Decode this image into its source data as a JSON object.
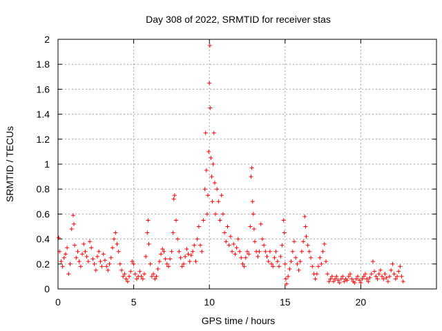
{
  "chart_data": {
    "type": "scatter",
    "title": "Day 308 of 2022, SRMTID for receiver stas",
    "xlabel": "GPS time / hours",
    "ylabel": "SRMTID / TECUs",
    "xlim": [
      0,
      25
    ],
    "ylim": [
      0,
      2
    ],
    "xticks": [
      0,
      5,
      10,
      15,
      20
    ],
    "yticks": [
      0,
      0.2,
      0.4,
      0.6,
      0.8,
      1,
      1.2,
      1.4,
      1.6,
      1.8,
      2
    ],
    "grid": true,
    "marker": "plus",
    "series": [
      {
        "name": "SRMTID",
        "color": "#ff0000",
        "points": [
          [
            0.05,
            0.41
          ],
          [
            0.1,
            0.3
          ],
          [
            0.2,
            0.22
          ],
          [
            0.3,
            0.18
          ],
          [
            0.4,
            0.25
          ],
          [
            0.5,
            0.28
          ],
          [
            0.6,
            0.33
          ],
          [
            0.7,
            0.12
          ],
          [
            0.8,
            0.2
          ],
          [
            0.9,
            0.48
          ],
          [
            1.0,
            0.59
          ],
          [
            1.05,
            0.52
          ],
          [
            1.1,
            0.35
          ],
          [
            1.2,
            0.25
          ],
          [
            1.3,
            0.3
          ],
          [
            1.4,
            0.22
          ],
          [
            1.5,
            0.18
          ],
          [
            1.6,
            0.28
          ],
          [
            1.7,
            0.36
          ],
          [
            1.8,
            0.3
          ],
          [
            1.9,
            0.26
          ],
          [
            2.0,
            0.22
          ],
          [
            2.1,
            0.38
          ],
          [
            2.2,
            0.33
          ],
          [
            2.3,
            0.24
          ],
          [
            2.4,
            0.2
          ],
          [
            2.5,
            0.15
          ],
          [
            2.6,
            0.26
          ],
          [
            2.7,
            0.3
          ],
          [
            2.8,
            0.22
          ],
          [
            2.9,
            0.18
          ],
          [
            3.0,
            0.28
          ],
          [
            3.1,
            0.23
          ],
          [
            3.2,
            0.18
          ],
          [
            3.3,
            0.15
          ],
          [
            3.4,
            0.2
          ],
          [
            3.5,
            0.25
          ],
          [
            3.6,
            0.33
          ],
          [
            3.7,
            0.4
          ],
          [
            3.8,
            0.45
          ],
          [
            3.9,
            0.36
          ],
          [
            4.0,
            0.3
          ],
          [
            4.1,
            0.2
          ],
          [
            4.2,
            0.15
          ],
          [
            4.3,
            0.1
          ],
          [
            4.4,
            0.12
          ],
          [
            4.5,
            0.08
          ],
          [
            4.6,
            0.06
          ],
          [
            4.7,
            0.1
          ],
          [
            4.8,
            0.14
          ],
          [
            4.9,
            0.22
          ],
          [
            5.0,
            0.2
          ],
          [
            5.1,
            0.12
          ],
          [
            5.2,
            0.08
          ],
          [
            5.3,
            0.1
          ],
          [
            5.4,
            0.14
          ],
          [
            5.5,
            0.1
          ],
          [
            5.6,
            0.08
          ],
          [
            5.7,
            0.12
          ],
          [
            5.8,
            0.26
          ],
          [
            5.9,
            0.45
          ],
          [
            5.95,
            0.55
          ],
          [
            6.0,
            0.36
          ],
          [
            6.1,
            0.2
          ],
          [
            6.2,
            0.1
          ],
          [
            6.3,
            0.12
          ],
          [
            6.4,
            0.08
          ],
          [
            6.5,
            0.1
          ],
          [
            6.6,
            0.16
          ],
          [
            6.7,
            0.22
          ],
          [
            6.8,
            0.28
          ],
          [
            6.9,
            0.32
          ],
          [
            7.0,
            0.3
          ],
          [
            7.1,
            0.24
          ],
          [
            7.2,
            0.2
          ],
          [
            7.3,
            0.18
          ],
          [
            7.4,
            0.24
          ],
          [
            7.5,
            0.3
          ],
          [
            7.6,
            0.45
          ],
          [
            7.65,
            0.72
          ],
          [
            7.7,
            0.75
          ],
          [
            7.8,
            0.55
          ],
          [
            7.9,
            0.4
          ],
          [
            8.0,
            0.3
          ],
          [
            8.1,
            0.25
          ],
          [
            8.2,
            0.18
          ],
          [
            8.3,
            0.2
          ],
          [
            8.4,
            0.26
          ],
          [
            8.5,
            0.32
          ],
          [
            8.6,
            0.28
          ],
          [
            8.7,
            0.22
          ],
          [
            8.8,
            0.27
          ],
          [
            8.9,
            0.3
          ],
          [
            9.0,
            0.35
          ],
          [
            9.1,
            0.22
          ],
          [
            9.2,
            0.4
          ],
          [
            9.3,
            0.5
          ],
          [
            9.4,
            0.35
          ],
          [
            9.5,
            0.3
          ],
          [
            9.6,
            0.55
          ],
          [
            9.7,
            0.8
          ],
          [
            9.75,
            1.25
          ],
          [
            9.8,
            0.95
          ],
          [
            9.85,
            0.6
          ],
          [
            9.9,
            0.75
          ],
          [
            9.95,
            1.1
          ],
          [
            10.0,
            1.65
          ],
          [
            10.03,
            1.95
          ],
          [
            10.05,
            1.45
          ],
          [
            10.1,
            1.05
          ],
          [
            10.15,
            0.9
          ],
          [
            10.2,
            0.7
          ],
          [
            10.25,
            1.0
          ],
          [
            10.3,
            1.25
          ],
          [
            10.35,
            0.85
          ],
          [
            10.4,
            0.6
          ],
          [
            10.5,
            0.8
          ],
          [
            10.6,
            0.7
          ],
          [
            10.7,
            0.55
          ],
          [
            10.8,
            0.75
          ],
          [
            10.9,
            0.6
          ],
          [
            11.0,
            0.45
          ],
          [
            11.1,
            0.38
          ],
          [
            11.2,
            0.5
          ],
          [
            11.3,
            0.35
          ],
          [
            11.4,
            0.42
          ],
          [
            11.5,
            0.3
          ],
          [
            11.6,
            0.36
          ],
          [
            11.7,
            0.28
          ],
          [
            11.8,
            0.33
          ],
          [
            11.9,
            0.4
          ],
          [
            12.0,
            0.3
          ],
          [
            12.1,
            0.25
          ],
          [
            12.2,
            0.2
          ],
          [
            12.3,
            0.18
          ],
          [
            12.4,
            0.25
          ],
          [
            12.5,
            0.3
          ],
          [
            12.6,
            0.28
          ],
          [
            12.7,
            0.5
          ],
          [
            12.75,
            0.9
          ],
          [
            12.8,
            0.97
          ],
          [
            12.85,
            0.7
          ],
          [
            12.9,
            0.6
          ],
          [
            12.95,
            0.48
          ],
          [
            13.0,
            0.38
          ],
          [
            13.1,
            0.3
          ],
          [
            13.2,
            0.26
          ],
          [
            13.3,
            0.3
          ],
          [
            13.4,
            0.52
          ],
          [
            13.5,
            0.4
          ],
          [
            13.6,
            0.35
          ],
          [
            13.7,
            0.3
          ],
          [
            13.8,
            0.26
          ],
          [
            13.9,
            0.22
          ],
          [
            14.0,
            0.3
          ],
          [
            14.1,
            0.2
          ],
          [
            14.2,
            0.18
          ],
          [
            14.3,
            0.25
          ],
          [
            14.4,
            0.3
          ],
          [
            14.5,
            0.22
          ],
          [
            14.6,
            0.18
          ],
          [
            14.7,
            0.26
          ],
          [
            14.8,
            0.35
          ],
          [
            14.9,
            0.55
          ],
          [
            14.95,
            0.45
          ],
          [
            15.0,
            0.2
          ],
          [
            15.05,
            0.08
          ],
          [
            15.1,
            0.04
          ],
          [
            15.2,
            0.1
          ],
          [
            15.3,
            0.16
          ],
          [
            15.4,
            0.22
          ],
          [
            15.5,
            0.3
          ],
          [
            15.6,
            0.38
          ],
          [
            15.7,
            0.25
          ],
          [
            15.8,
            0.2
          ],
          [
            15.9,
            0.15
          ],
          [
            16.0,
            0.22
          ],
          [
            16.1,
            0.3
          ],
          [
            16.2,
            0.38
          ],
          [
            16.3,
            0.58
          ],
          [
            16.35,
            0.5
          ],
          [
            16.4,
            0.42
          ],
          [
            16.5,
            0.35
          ],
          [
            16.6,
            0.3
          ],
          [
            16.7,
            0.25
          ],
          [
            16.8,
            0.18
          ],
          [
            16.9,
            0.12
          ],
          [
            17.0,
            0.08
          ],
          [
            17.1,
            0.12
          ],
          [
            17.2,
            0.18
          ],
          [
            17.3,
            0.25
          ],
          [
            17.4,
            0.2
          ],
          [
            17.5,
            0.3
          ],
          [
            17.6,
            0.36
          ],
          [
            17.7,
            0.22
          ],
          [
            17.8,
            0.12
          ],
          [
            17.9,
            0.06
          ],
          [
            18.0,
            0.08
          ],
          [
            18.1,
            0.1
          ],
          [
            18.2,
            0.06
          ],
          [
            18.3,
            0.08
          ],
          [
            18.4,
            0.1
          ],
          [
            18.5,
            0.07
          ],
          [
            18.6,
            0.05
          ],
          [
            18.7,
            0.08
          ],
          [
            18.8,
            0.1
          ],
          [
            18.9,
            0.06
          ],
          [
            19.0,
            0.08
          ],
          [
            19.1,
            0.07
          ],
          [
            19.2,
            0.1
          ],
          [
            19.3,
            0.12
          ],
          [
            19.4,
            0.08
          ],
          [
            19.5,
            0.06
          ],
          [
            19.6,
            0.05
          ],
          [
            19.7,
            0.08
          ],
          [
            19.8,
            0.1
          ],
          [
            19.9,
            0.07
          ],
          [
            20.0,
            0.05
          ],
          [
            20.1,
            0.08
          ],
          [
            20.2,
            0.1
          ],
          [
            20.3,
            0.12
          ],
          [
            20.4,
            0.08
          ],
          [
            20.5,
            0.06
          ],
          [
            20.6,
            0.09
          ],
          [
            20.7,
            0.12
          ],
          [
            20.8,
            0.22
          ],
          [
            20.9,
            0.14
          ],
          [
            21.0,
            0.1
          ],
          [
            21.1,
            0.08
          ],
          [
            21.2,
            0.12
          ],
          [
            21.3,
            0.15
          ],
          [
            21.4,
            0.1
          ],
          [
            21.5,
            0.08
          ],
          [
            21.6,
            0.12
          ],
          [
            21.7,
            0.09
          ],
          [
            21.8,
            0.06
          ],
          [
            21.9,
            0.1
          ],
          [
            22.0,
            0.15
          ],
          [
            22.1,
            0.2
          ],
          [
            22.2,
            0.12
          ],
          [
            22.3,
            0.08
          ],
          [
            22.4,
            0.1
          ],
          [
            22.5,
            0.14
          ],
          [
            22.6,
            0.18
          ],
          [
            22.7,
            0.1
          ],
          [
            22.8,
            0.06
          ]
        ]
      }
    ]
  }
}
